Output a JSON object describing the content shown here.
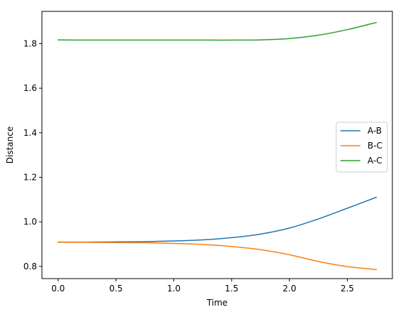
{
  "chart_data": {
    "type": "line",
    "title": "",
    "xlabel": "Time",
    "ylabel": "Distance",
    "xlim": [
      -0.14,
      2.89
    ],
    "ylim": [
      0.745,
      1.945
    ],
    "xticks": [
      0.0,
      0.5,
      1.0,
      1.5,
      2.0,
      2.5
    ],
    "xtick_labels": [
      "0.0",
      "0.5",
      "1.0",
      "1.5",
      "2.0",
      "2.5"
    ],
    "yticks": [
      0.8,
      1.0,
      1.2,
      1.4,
      1.6,
      1.8
    ],
    "ytick_labels": [
      "0.8",
      "1.0",
      "1.2",
      "1.4",
      "1.6",
      "1.8"
    ],
    "grid": false,
    "legend_position": "center-right",
    "x": [
      0.0,
      0.25,
      0.5,
      0.75,
      1.0,
      1.25,
      1.5,
      1.75,
      2.0,
      2.25,
      2.5,
      2.75
    ],
    "series": [
      {
        "name": "A-B",
        "color": "#1f77b4",
        "values": [
          0.909,
          0.909,
          0.91,
          0.911,
          0.914,
          0.919,
          0.929,
          0.945,
          0.972,
          1.013,
          1.061,
          1.11
        ]
      },
      {
        "name": "B-C",
        "color": "#ff7f0e",
        "values": [
          0.908,
          0.908,
          0.907,
          0.906,
          0.903,
          0.898,
          0.889,
          0.875,
          0.852,
          0.822,
          0.799,
          0.786
        ]
      },
      {
        "name": "A-C",
        "color": "#2ca02c",
        "values": [
          1.817,
          1.816,
          1.816,
          1.816,
          1.816,
          1.816,
          1.816,
          1.817,
          1.823,
          1.838,
          1.863,
          1.895
        ]
      }
    ]
  }
}
